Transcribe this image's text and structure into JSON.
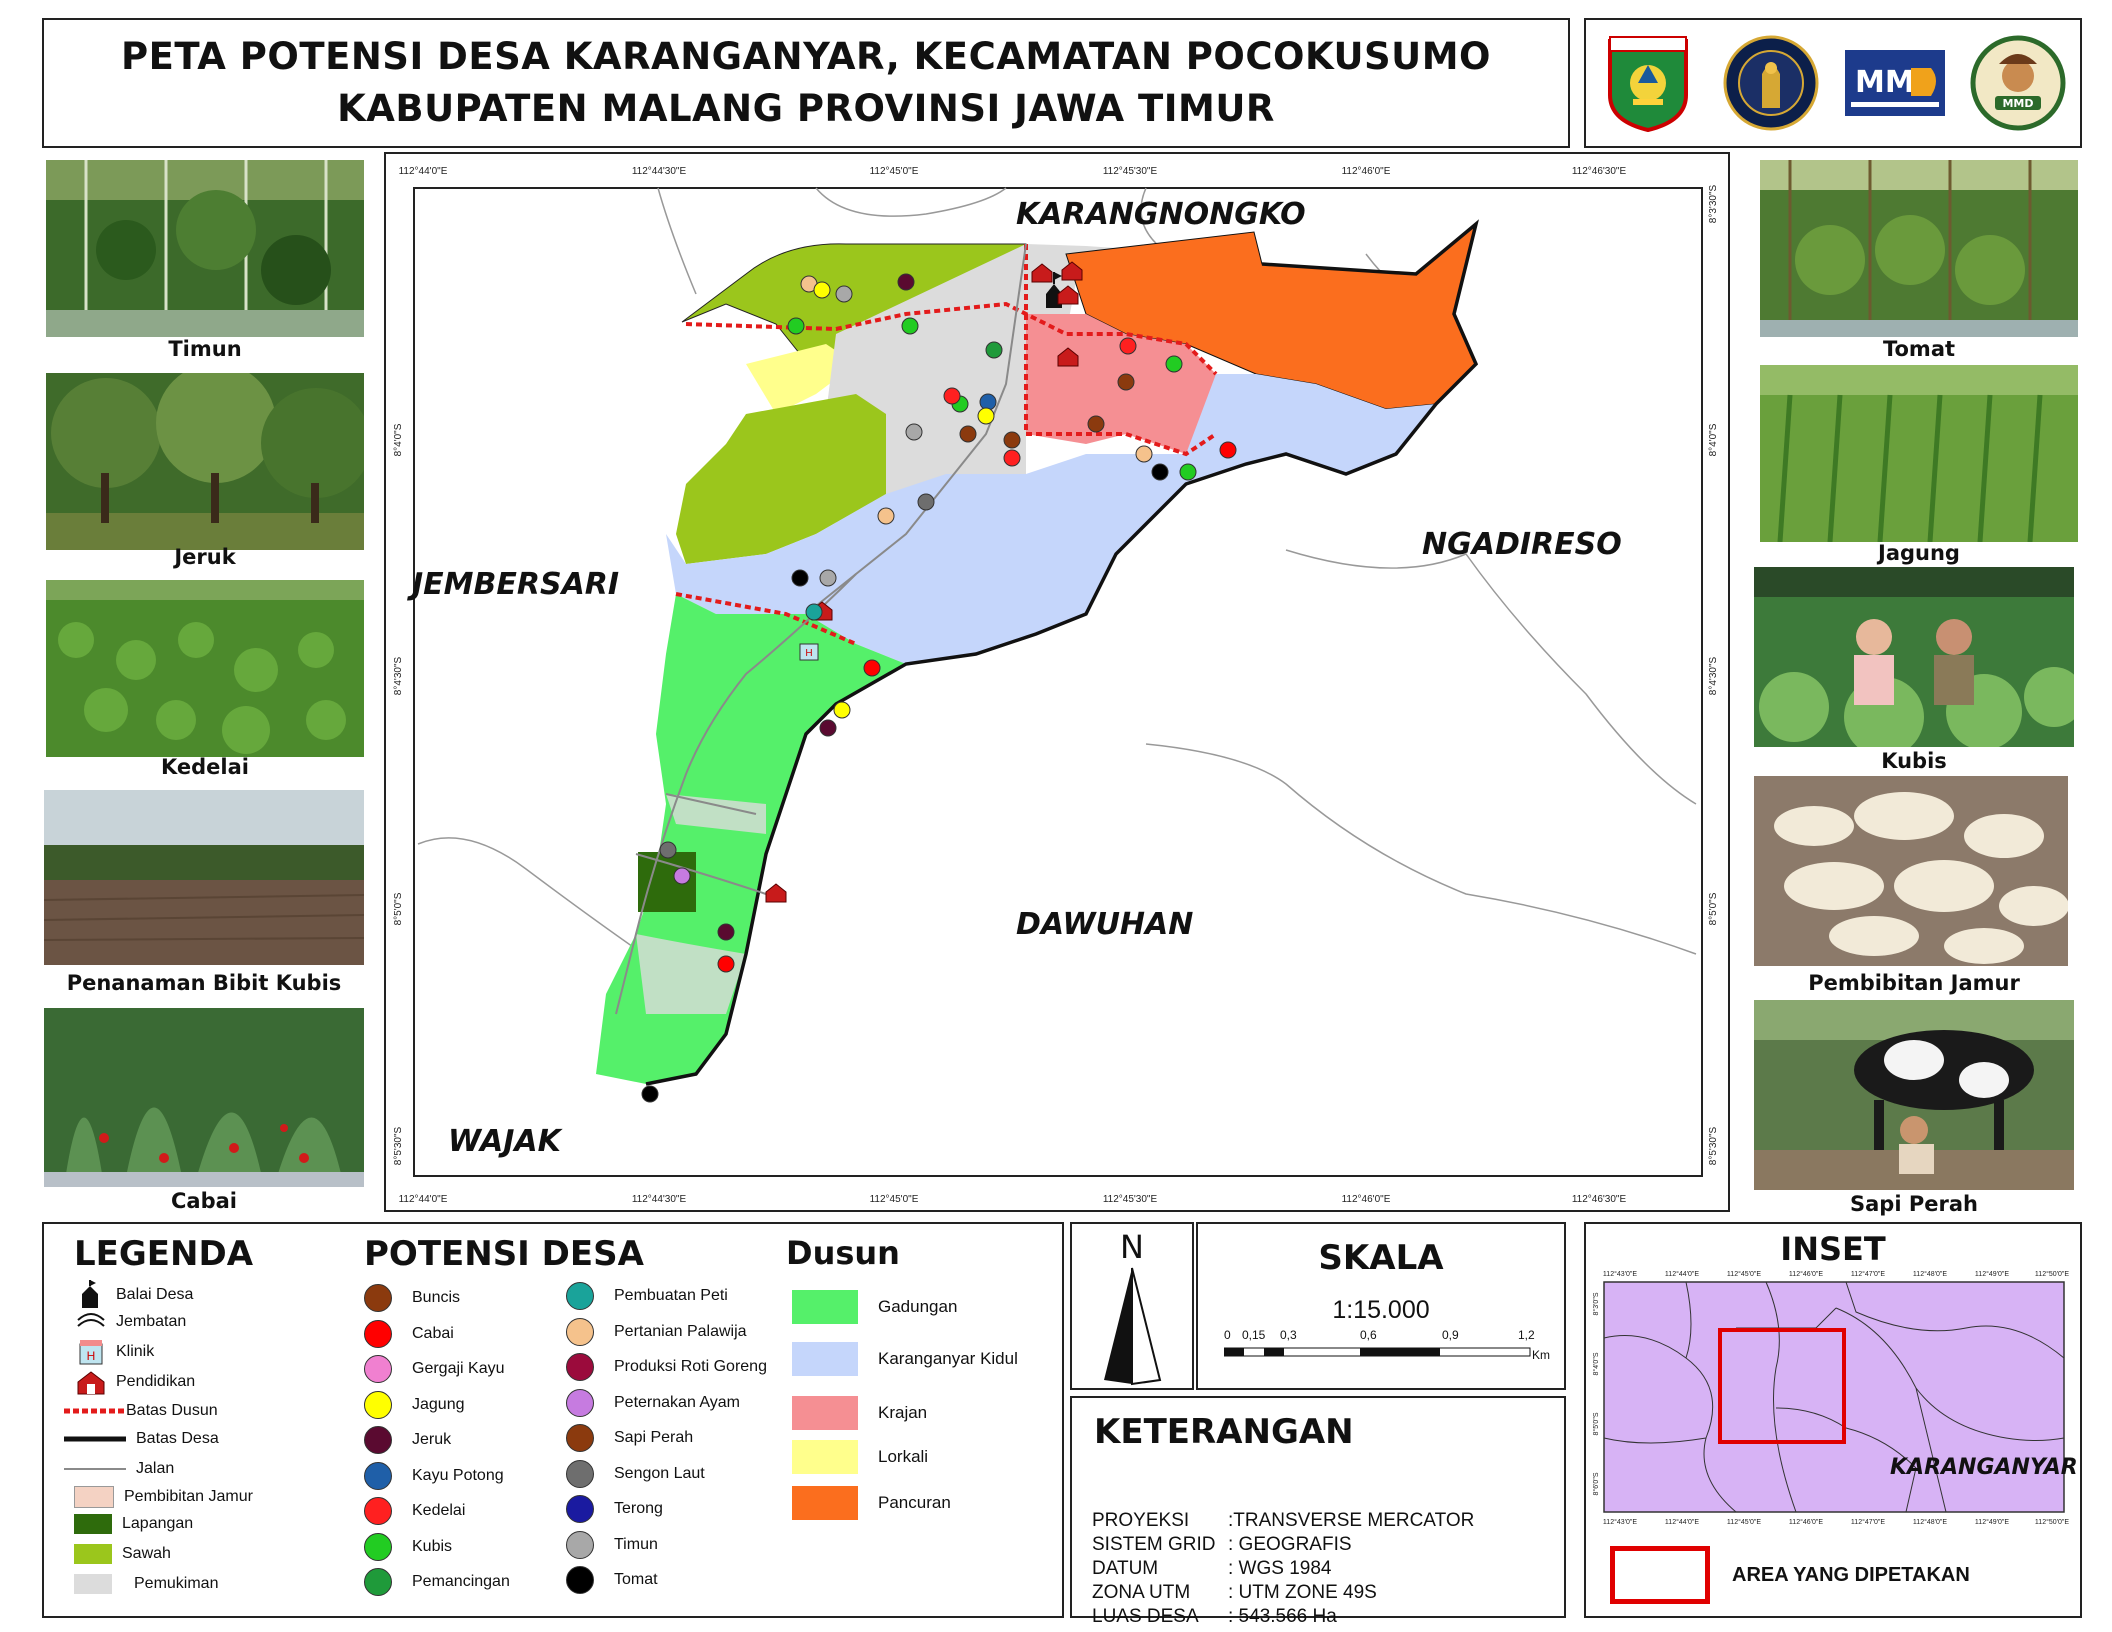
{
  "title": {
    "line1": "PETA POTENSI DESA KARANGANYAR, KECAMATAN POCOKUSUMO",
    "line2": "KABUPATEN MALANG PROVINSI JAWA TIMUR"
  },
  "logos": [
    {
      "name": "kabupaten-malang-logo",
      "text": "KABUPATEN MALANG"
    },
    {
      "name": "universitas-brawijaya-logo",
      "text": "UNIVERSITAS BRAWIJAYA"
    },
    {
      "name": "mmd-logo",
      "text": "MMD"
    },
    {
      "name": "mmd-team-logo",
      "text": "MMD"
    }
  ],
  "photos_left": [
    "Timun",
    "Jeruk",
    "Kedelai",
    "Penanaman Bibit Kubis",
    "Cabai"
  ],
  "photos_right": [
    "Tomat",
    "Jagung",
    "Kubis",
    "Pembibitan Jamur",
    "Sapi Perah"
  ],
  "map": {
    "top_ticks": [
      "112°44'0\"E",
      "112°44'30\"E",
      "112°45'0\"E",
      "112°45'30\"E",
      "112°46'0\"E",
      "112°46'30\"E"
    ],
    "left_ticks": [
      "8°4'0\"S",
      "8°4'30\"S",
      "8°5'0\"S",
      "8°5'30\"S"
    ],
    "right_ticks": [
      "8°3'30\"S",
      "8°4'0\"S",
      "8°4'30\"S",
      "8°5'0\"S",
      "8°5'30\"S"
    ],
    "neighbors": {
      "north": "KARANGNONGKO",
      "west": "JEMBERSARI",
      "east": "NGADIRESO",
      "south": "DAWUHAN",
      "southwest": "WAJAK"
    }
  },
  "legend": {
    "title": "LEGENDA",
    "items": [
      "Balai Desa",
      "Jembatan",
      "Klinik",
      "Pendidikan",
      "Batas Dusun",
      "Batas Desa",
      "Jalan",
      "Pembibitan Jamur",
      "Lapangan",
      "Sawah",
      "Pemukiman"
    ],
    "colors": {
      "pembibitan_jamur": "#f4d2c3",
      "lapangan": "#2e6b0c",
      "sawah": "#9bc61c",
      "pemukiman": "#dcdcdc"
    }
  },
  "potensi": {
    "title": "POTENSI DESA",
    "col1": [
      {
        "label": "Buncis",
        "color": "#8b3a0e"
      },
      {
        "label": "Cabai",
        "color": "#ff0000"
      },
      {
        "label": "Gergaji Kayu",
        "color": "#f080d0"
      },
      {
        "label": "Jagung",
        "color": "#ffff00"
      },
      {
        "label": "Jeruk",
        "color": "#5a0a30"
      },
      {
        "label": "Kayu Potong",
        "color": "#1f5fa8"
      },
      {
        "label": "Kedelai",
        "color": "#ff2020"
      },
      {
        "label": "Kubis",
        "color": "#22cc22"
      },
      {
        "label": "Pemancingan",
        "color": "#1f9a3a"
      }
    ],
    "col2": [
      {
        "label": "Pembuatan Peti",
        "color": "#1aa39a"
      },
      {
        "label": "Pertanian Palawija",
        "color": "#f5c28c"
      },
      {
        "label": "Produksi Roti Goreng",
        "color": "#9b0b3c"
      },
      {
        "label": "Peternakan Ayam",
        "color": "#c67be0"
      },
      {
        "label": "Sapi Perah",
        "color": "#8b3a0e"
      },
      {
        "label": "Sengon Laut",
        "color": "#6e6e6e"
      },
      {
        "label": "Terong",
        "color": "#1a1aa0"
      },
      {
        "label": "Timun",
        "color": "#a8a8a8"
      },
      {
        "label": "Tomat",
        "color": "#000000"
      }
    ]
  },
  "dusun": {
    "title": "Dusun",
    "items": [
      {
        "label": "Gadungan",
        "color": "#55f06a"
      },
      {
        "label": "Karanganyar Kidul",
        "color": "#c5d6fb"
      },
      {
        "label": "Krajan",
        "color": "#f58f93"
      },
      {
        "label": "Lorkali",
        "color": "#ffff8c"
      },
      {
        "label": "Pancuran",
        "color": "#fb6e1e"
      }
    ]
  },
  "north": {
    "label": "N"
  },
  "scale": {
    "title": "SKALA",
    "ratio": "1:15.000",
    "ticks": [
      "0",
      "0,15",
      "0,3",
      "0,6",
      "0,9",
      "1,2"
    ],
    "unit": "Km"
  },
  "keterangan": {
    "title": "KETERANGAN",
    "rows": [
      {
        "k": "PROYEKSI",
        "v": ":TRANSVERSE MERCATOR"
      },
      {
        "k": "SISTEM GRID",
        "v": ": GEOGRAFIS"
      },
      {
        "k": "DATUM",
        "v": ": WGS 1984"
      },
      {
        "k": "ZONA UTM",
        "v": ": UTM ZONE 49S"
      },
      {
        "k": "LUAS DESA",
        "v": ": 543.566 Ha"
      }
    ]
  },
  "inset": {
    "title": "INSET",
    "label": "KARANGANYAR",
    "legend_label": "AREA YANG DIPETAKAN",
    "top_ticks": [
      "112°43'0\"E",
      "112°44'0\"E",
      "112°45'0\"E",
      "112°46'0\"E",
      "112°47'0\"E",
      "112°48'0\"E",
      "112°49'0\"E",
      "112°50'0\"E"
    ],
    "left_ticks": [
      "8°3'0\"S",
      "8°4'0\"S",
      "8°5'0\"S",
      "8°6'0\"S"
    ],
    "fill": "#d7b3f5"
  }
}
